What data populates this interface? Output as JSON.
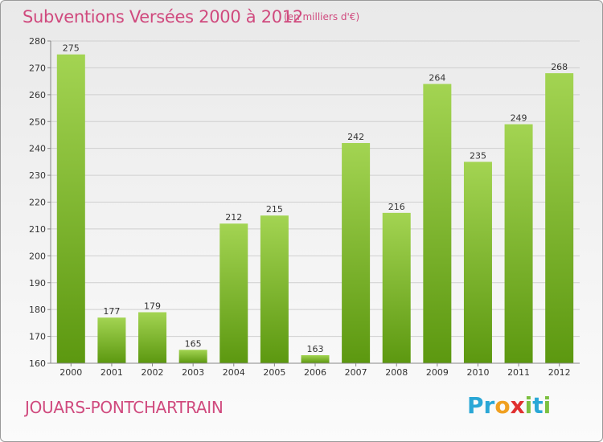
{
  "header": {
    "title": "Subventions Versées 2000 à 2012",
    "subtitle": "(en milliers d'€)"
  },
  "footer": {
    "commune": "JOUARS-PONTCHARTRAIN",
    "logo_letters": [
      {
        "char": "P",
        "color": "#2aa7d6"
      },
      {
        "char": "r",
        "color": "#2aa7d6"
      },
      {
        "char": "o",
        "color": "#f0a020"
      },
      {
        "char": "x",
        "color": "#e03030"
      },
      {
        "char": "i",
        "color": "#7cc040"
      },
      {
        "char": "t",
        "color": "#2aa7d6"
      },
      {
        "char": "i",
        "color": "#7cc040"
      }
    ]
  },
  "colors": {
    "bar_light": "#9fd04f",
    "bar_dark": "#5f9a12",
    "title": "#d04a7e"
  },
  "chart_data": {
    "type": "bar",
    "title": "Subventions Versées 2000 à 2012",
    "subtitle": "(en milliers d'€)",
    "categories": [
      "2000",
      "2001",
      "2002",
      "2003",
      "2004",
      "2005",
      "2006",
      "2007",
      "2008",
      "2009",
      "2010",
      "2011",
      "2012"
    ],
    "values": [
      275,
      177,
      179,
      165,
      212,
      215,
      163,
      242,
      216,
      264,
      235,
      249,
      268
    ],
    "ylim": [
      160,
      280
    ],
    "yticks": [
      160,
      170,
      180,
      190,
      200,
      210,
      220,
      230,
      240,
      250,
      260,
      270,
      280
    ],
    "grid": true,
    "xlabel": "",
    "ylabel": ""
  }
}
